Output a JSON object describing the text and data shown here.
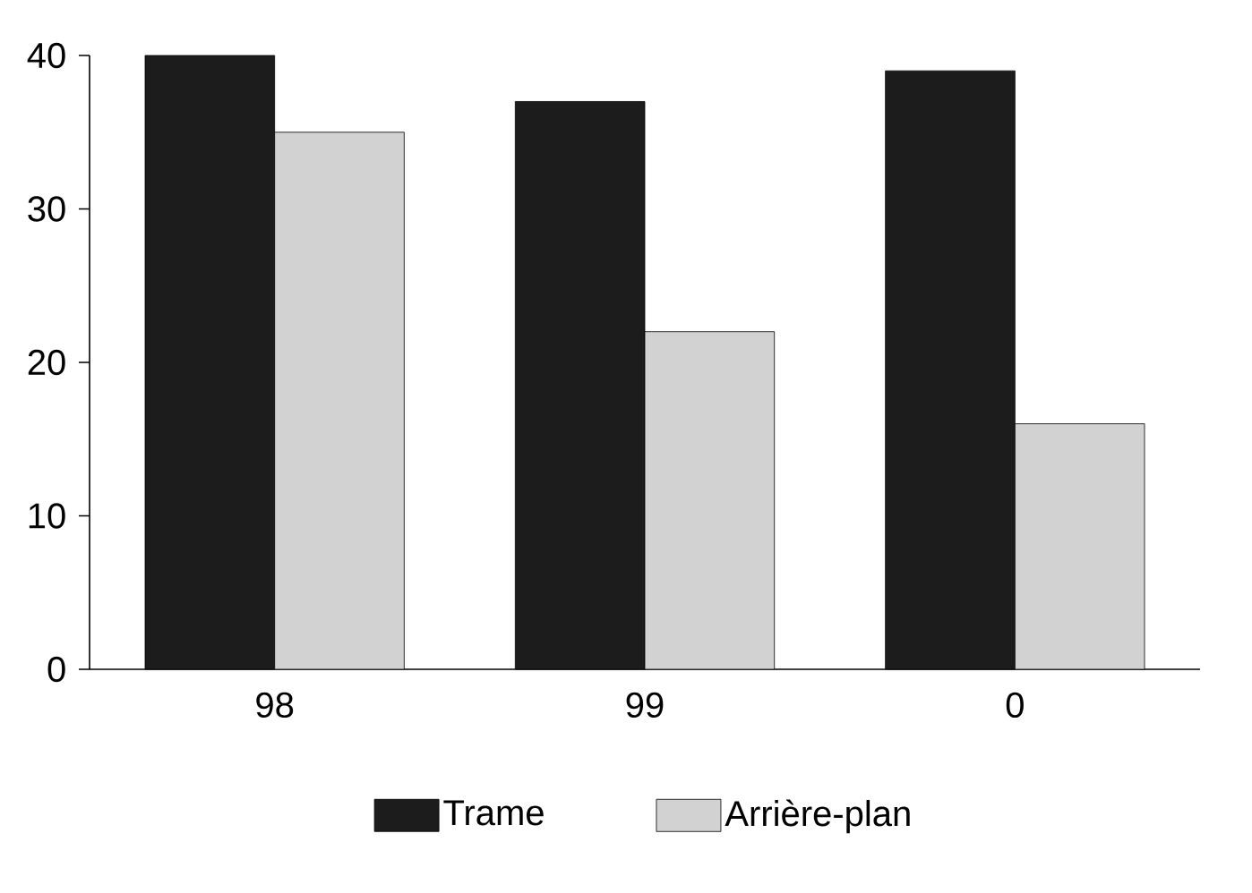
{
  "chart_data": {
    "type": "bar",
    "categories": [
      "98",
      "99",
      "0"
    ],
    "series": [
      {
        "name": "Trame",
        "color": "#1c1c1c",
        "values": [
          40,
          37,
          39
        ]
      },
      {
        "name": "Arrière-plan",
        "color": "#d2d2d2",
        "values": [
          35,
          22,
          16
        ]
      }
    ],
    "ylim": [
      0,
      40
    ],
    "yticks": [
      0,
      10,
      20,
      30,
      40
    ],
    "legend": "bottom"
  }
}
